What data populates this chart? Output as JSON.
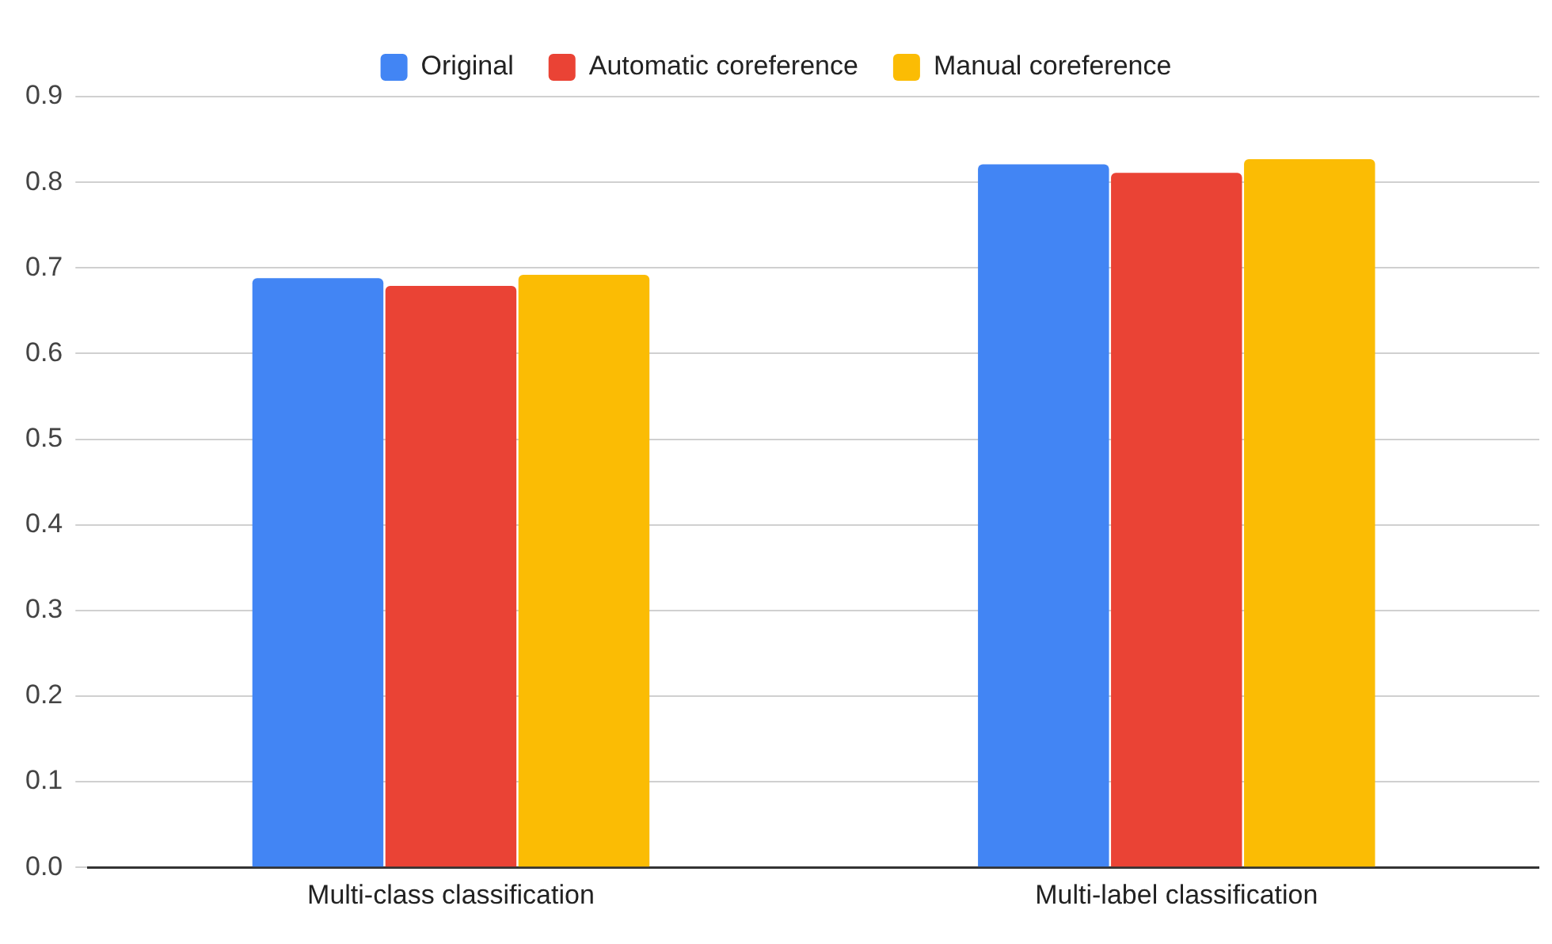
{
  "chart_data": {
    "type": "bar",
    "categories": [
      "Multi-class classification",
      "Multi-label classification"
    ],
    "series": [
      {
        "name": "Original",
        "color": "#4285f4",
        "values": [
          0.688,
          0.821
        ]
      },
      {
        "name": "Automatic coreference",
        "color": "#ea4335",
        "values": [
          0.679,
          0.811
        ]
      },
      {
        "name": "Manual coreference",
        "color": "#fbbc04",
        "values": [
          0.692,
          0.827
        ]
      }
    ],
    "ylim": [
      0,
      0.9
    ],
    "yticks": [
      {
        "value": 0,
        "label": "0.0"
      },
      0.1,
      0.2,
      0.3,
      0.4,
      0.5,
      0.6,
      0.7,
      0.8,
      0.9
    ],
    "grid": "y",
    "legend": "top"
  }
}
